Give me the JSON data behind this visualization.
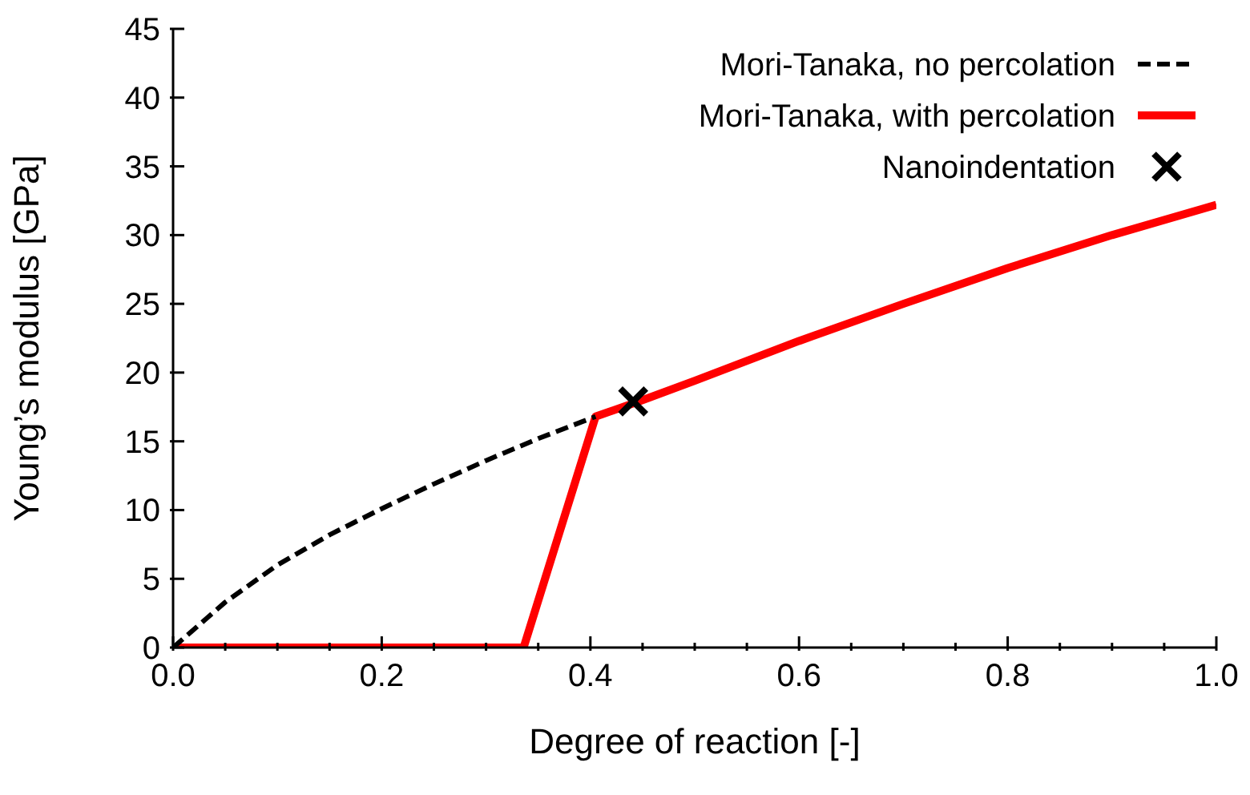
{
  "chart_data": {
    "type": "line",
    "xlabel": "Degree of reaction [-]",
    "ylabel": "Young’s modulus [GPa]",
    "xlim": [
      0,
      1
    ],
    "ylim": [
      0,
      45
    ],
    "xticks": [
      {
        "value": 0,
        "label": "0.0"
      },
      {
        "value": 0.05,
        "label": null
      },
      {
        "value": 0.1,
        "label": null
      },
      {
        "value": 0.15,
        "label": null
      },
      0.2,
      {
        "value": 0.25,
        "label": null
      },
      {
        "value": 0.3,
        "label": null
      },
      {
        "value": 0.35,
        "label": null
      },
      {
        "value": 0.4,
        "label": "0.4"
      },
      {
        "value": 0.45,
        "label": null
      },
      {
        "value": 0.5,
        "label": null
      },
      {
        "value": 0.55,
        "label": null
      },
      {
        "value": 0.6,
        "label": "0.6"
      },
      {
        "value": 0.65,
        "label": null
      },
      {
        "value": 0.7,
        "label": null
      },
      {
        "value": 0.75,
        "label": null
      },
      {
        "value": 0.8,
        "label": "0.8"
      },
      {
        "value": 0.85,
        "label": null
      },
      {
        "value": 0.9,
        "label": null
      },
      {
        "value": 0.95,
        "label": null
      },
      {
        "value": 1,
        "label": "1.0"
      }
    ],
    "yticks": [
      0,
      5,
      10,
      15,
      20,
      25,
      30,
      35,
      40,
      45
    ],
    "grid": false,
    "legend": "top right",
    "series": [
      {
        "name": "Mori-Tanaka, no percolation",
        "color": "#000000",
        "line_style": "dashed",
        "marker": "none",
        "x": [
          0,
          0.05,
          0.1,
          0.15,
          0.2,
          0.25,
          0.3,
          0.35,
          0.405
        ],
        "values": [
          0,
          3.3,
          6.0,
          8.2,
          10.1,
          11.9,
          13.6,
          15.2,
          16.8
        ]
      },
      {
        "name": "Mori-Tanaka, with percolation",
        "color": "#ff0000",
        "line_style": "solid",
        "marker": "none",
        "x": [
          0,
          0.336,
          0.405,
          0.45,
          0.5,
          0.6,
          0.7,
          0.8,
          0.9,
          1.0
        ],
        "values": [
          0,
          0,
          16.8,
          18.0,
          19.4,
          22.3,
          25.0,
          27.6,
          30.0,
          32.2
        ]
      },
      {
        "name": "Nanoindentation",
        "type": "scatter",
        "color": "#000000",
        "marker": "cross",
        "x": [
          0.441
        ],
        "values": [
          17.9
        ]
      }
    ]
  }
}
